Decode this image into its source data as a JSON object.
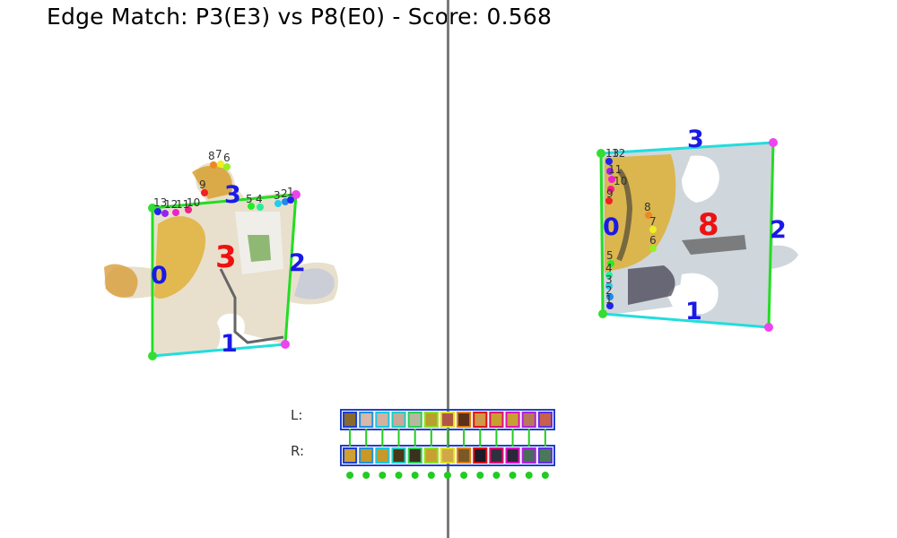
{
  "title": "Edge Match: P3(E3) vs P8(E0) - Score: 0.568",
  "left_piece": {
    "id_label": "3",
    "edge_labels": [
      "0",
      "1",
      "2",
      "3"
    ],
    "point_labels": [
      "13",
      "12",
      "11",
      "10",
      "9",
      "8",
      "7",
      "6",
      "5",
      "4",
      "3",
      "2",
      "1"
    ]
  },
  "right_piece": {
    "id_label": "8",
    "edge_labels": [
      "0",
      "1",
      "2",
      "3"
    ],
    "point_labels": [
      "13",
      "12",
      "11",
      "10",
      "9",
      "8",
      "7",
      "6",
      "5",
      "4",
      "3",
      "2",
      "1"
    ]
  },
  "strips": {
    "left_label": "L:",
    "right_label": "R:",
    "left_colors": [
      "#8a6a2a",
      "#d8b8a8",
      "#d4b0a0",
      "#c8a898",
      "#b8b8a0",
      "#b8a030",
      "#b05848",
      "#5a3018",
      "#d09848",
      "#c8a030",
      "#c8a030",
      "#b8785a",
      "#c86050"
    ],
    "right_colors": [
      "#d0a030",
      "#c89828",
      "#c89828",
      "#4a3818",
      "#3a3020",
      "#c8a030",
      "#d0a848",
      "#7a5828",
      "#1a1a28",
      "#303040",
      "#282838",
      "#4a6a5a",
      "#4a7858"
    ],
    "link_colors": [
      "#22cc22",
      "#22cc22",
      "#22cc22",
      "#22cc22",
      "#22cc22",
      "#22cc22",
      "#22cc22",
      "#22cc22",
      "#22cc22",
      "#22cc22",
      "#22cc22",
      "#22cc22",
      "#22cc22"
    ],
    "border_colors": [
      "#1f3fd0",
      "#2090e0",
      "#18c8e0",
      "#20d0c0",
      "#30d050",
      "#90e020",
      "#e0e020",
      "#e08010",
      "#e01010",
      "#e01070",
      "#e010c0",
      "#b020e0",
      "#6030e0"
    ]
  },
  "colors": {
    "edge_green": "#22dd22",
    "edge_cyan": "#22dddd",
    "edge_label_blue": "#1a1ae6",
    "piece_label_red": "#ee1111",
    "corner_magenta": "#ee44ee",
    "corner_green": "#33dd33"
  }
}
